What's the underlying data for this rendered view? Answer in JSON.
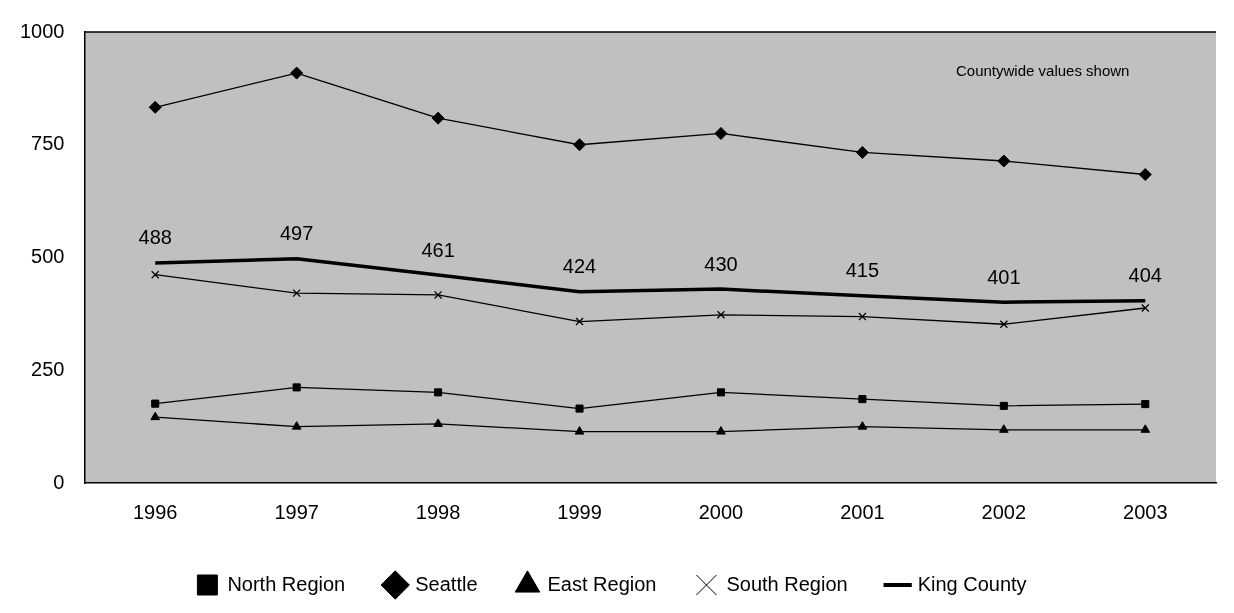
{
  "chart_data": {
    "type": "line",
    "categories": [
      "1996",
      "1997",
      "1998",
      "1999",
      "2000",
      "2001",
      "2002",
      "2003"
    ],
    "series": [
      {
        "name": "North Region",
        "color": "#000000",
        "marker": "square",
        "values": [
          176,
          212,
          201,
          165,
          201,
          186,
          171,
          175
        ]
      },
      {
        "name": "Seattle",
        "color": "#000000",
        "marker": "diamond",
        "values": [
          833,
          909,
          809,
          750,
          775,
          733,
          714,
          684
        ]
      },
      {
        "name": "East Region",
        "color": "#000000",
        "marker": "triangle",
        "values": [
          146,
          125,
          131,
          114,
          114,
          125,
          118,
          118
        ]
      },
      {
        "name": "South Region",
        "color": "#000000",
        "marker": "cross",
        "values": [
          462,
          421,
          417,
          358,
          373,
          369,
          352,
          388
        ]
      },
      {
        "name": "King County",
        "color": "#000000",
        "marker": "none",
        "values": [
          488,
          497,
          461,
          424,
          430,
          415,
          401,
          404
        ],
        "value_labels": [
          "488",
          "497",
          "461",
          "424",
          "430",
          "415",
          "401",
          "404"
        ]
      }
    ],
    "ylim": [
      0,
      1000
    ],
    "yticks": [
      0,
      250,
      500,
      750,
      1000
    ],
    "grid": false,
    "legend": "bottom",
    "annotations": [
      "Countywide values shown"
    ]
  }
}
